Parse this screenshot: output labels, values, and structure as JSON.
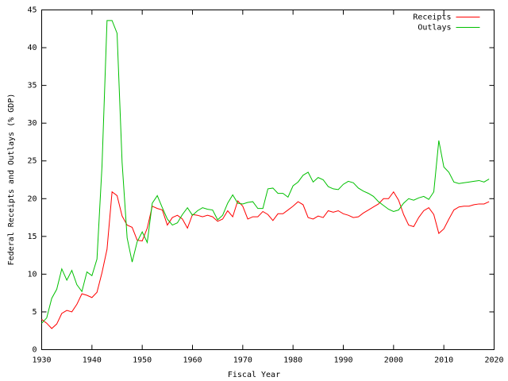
{
  "chart_data": {
    "type": "line",
    "xlabel": "Fiscal Year",
    "ylabel": "Federal Receipts and Outlays (% GDP)",
    "x": [
      1930,
      1931,
      1932,
      1933,
      1934,
      1935,
      1936,
      1937,
      1938,
      1939,
      1940,
      1941,
      1942,
      1943,
      1944,
      1945,
      1946,
      1947,
      1948,
      1949,
      1950,
      1951,
      1952,
      1953,
      1954,
      1955,
      1956,
      1957,
      1958,
      1959,
      1960,
      1961,
      1962,
      1963,
      1964,
      1965,
      1966,
      1967,
      1968,
      1969,
      1970,
      1971,
      1972,
      1973,
      1974,
      1975,
      1976,
      1977,
      1978,
      1979,
      1980,
      1981,
      1982,
      1983,
      1984,
      1985,
      1986,
      1987,
      1988,
      1989,
      1990,
      1991,
      1992,
      1993,
      1994,
      1995,
      1996,
      1997,
      1998,
      1999,
      2000,
      2001,
      2002,
      2003,
      2004,
      2005,
      2006,
      2007,
      2008,
      2009,
      2010,
      2011,
      2012,
      2013,
      2014,
      2015,
      2016,
      2017,
      2018,
      2019
    ],
    "series": [
      {
        "name": "Receipts",
        "color": "#ff0000",
        "values": [
          4.0,
          3.5,
          2.8,
          3.4,
          4.8,
          5.2,
          5.0,
          6.0,
          7.4,
          7.2,
          6.9,
          7.6,
          10.2,
          13.3,
          20.9,
          20.4,
          17.7,
          16.5,
          16.2,
          14.5,
          14.4,
          16.1,
          19.0,
          18.7,
          18.5,
          16.5,
          17.5,
          17.8,
          17.3,
          16.1,
          17.9,
          17.8,
          17.6,
          17.8,
          17.6,
          17.0,
          17.3,
          18.4,
          17.6,
          19.7,
          19.0,
          17.3,
          17.6,
          17.6,
          18.3,
          17.9,
          17.1,
          18.0,
          18.0,
          18.5,
          19.0,
          19.6,
          19.2,
          17.5,
          17.3,
          17.7,
          17.5,
          18.4,
          18.2,
          18.4,
          18.0,
          17.8,
          17.5,
          17.6,
          18.1,
          18.5,
          18.9,
          19.3,
          20.0,
          20.0,
          20.9,
          19.8,
          17.9,
          16.5,
          16.3,
          17.5,
          18.4,
          18.8,
          17.9,
          15.4,
          16.0,
          17.3,
          18.5,
          18.9,
          19.0,
          19.0,
          19.2,
          19.3,
          19.3,
          19.6
        ]
      },
      {
        "name": "Outlays",
        "color": "#00c000",
        "values": [
          3.5,
          4.2,
          6.8,
          8.0,
          10.7,
          9.2,
          10.5,
          8.6,
          7.7,
          10.3,
          9.8,
          12.0,
          24.3,
          43.6,
          43.6,
          41.9,
          24.8,
          14.8,
          11.6,
          14.3,
          15.6,
          14.2,
          19.4,
          20.4,
          18.8,
          17.3,
          16.5,
          16.8,
          17.9,
          18.8,
          17.8,
          18.4,
          18.8,
          18.6,
          18.5,
          17.2,
          17.8,
          19.4,
          20.5,
          19.4,
          19.3,
          19.5,
          19.6,
          18.7,
          18.7,
          21.3,
          21.4,
          20.7,
          20.7,
          20.2,
          21.7,
          22.2,
          23.1,
          23.5,
          22.2,
          22.8,
          22.5,
          21.6,
          21.3,
          21.2,
          21.9,
          22.3,
          22.1,
          21.4,
          21.0,
          20.7,
          20.3,
          19.6,
          19.1,
          18.6,
          18.3,
          18.5,
          19.4,
          20.0,
          19.8,
          20.1,
          20.3,
          19.9,
          20.9,
          27.7,
          24.2,
          23.5,
          22.2,
          22.0,
          22.1,
          22.2,
          22.3,
          22.4,
          22.2,
          22.6
        ]
      }
    ],
    "xlim": [
      1930,
      2020
    ],
    "xticks": [
      1930,
      1940,
      1950,
      1960,
      1970,
      1980,
      1990,
      2000,
      2010,
      2020
    ],
    "ylim": [
      0,
      45
    ],
    "yticks": [
      0,
      5,
      10,
      15,
      20,
      25,
      30,
      35,
      40,
      45
    ],
    "legend": "top-right",
    "grid": false
  }
}
